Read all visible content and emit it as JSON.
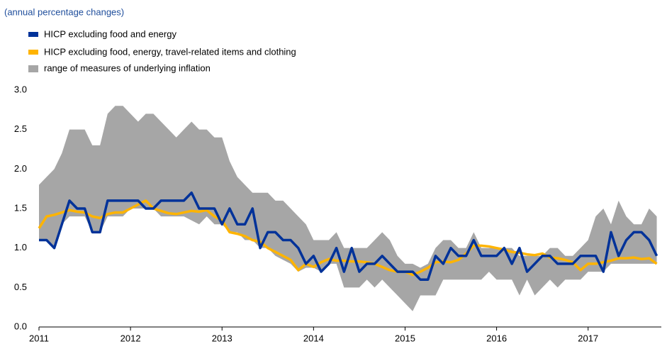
{
  "chart_data": {
    "type": "line",
    "subtitle": "(annual percentage changes)",
    "x": [
      2011,
      2011.083,
      2011.167,
      2011.25,
      2011.333,
      2011.417,
      2011.5,
      2011.583,
      2011.667,
      2011.75,
      2011.833,
      2011.917,
      2012,
      2012.083,
      2012.167,
      2012.25,
      2012.333,
      2012.417,
      2012.5,
      2012.583,
      2012.667,
      2012.75,
      2012.833,
      2012.917,
      2013,
      2013.083,
      2013.167,
      2013.25,
      2013.333,
      2013.417,
      2013.5,
      2013.583,
      2013.667,
      2013.75,
      2013.833,
      2013.917,
      2014,
      2014.083,
      2014.167,
      2014.25,
      2014.333,
      2014.417,
      2014.5,
      2014.583,
      2014.667,
      2014.75,
      2014.833,
      2014.917,
      2015,
      2015.083,
      2015.167,
      2015.25,
      2015.333,
      2015.417,
      2015.5,
      2015.583,
      2015.667,
      2015.75,
      2015.833,
      2015.917,
      2016,
      2016.083,
      2016.167,
      2016.25,
      2016.333,
      2016.417,
      2016.5,
      2016.583,
      2016.667,
      2016.75,
      2016.833,
      2016.917,
      2017,
      2017.083,
      2017.167,
      2017.25,
      2017.333,
      2017.417,
      2017.5,
      2017.583,
      2017.667,
      2017.75
    ],
    "range": {
      "name": "range of measures of underlying inflation",
      "color": "#a6a6a6",
      "upper": [
        1.8,
        1.9,
        2.0,
        2.2,
        2.5,
        2.5,
        2.5,
        2.3,
        2.3,
        2.7,
        2.8,
        2.8,
        2.7,
        2.6,
        2.7,
        2.7,
        2.6,
        2.5,
        2.4,
        2.5,
        2.6,
        2.5,
        2.5,
        2.4,
        2.4,
        2.1,
        1.9,
        1.8,
        1.7,
        1.7,
        1.7,
        1.6,
        1.6,
        1.5,
        1.4,
        1.3,
        1.1,
        1.1,
        1.1,
        1.2,
        1.0,
        1.0,
        1.0,
        1.0,
        1.1,
        1.2,
        1.1,
        0.9,
        0.8,
        0.8,
        0.75,
        0.8,
        1.0,
        1.1,
        1.1,
        1.0,
        1.0,
        1.2,
        1.0,
        1.0,
        1.0,
        1.0,
        1.0,
        0.9,
        0.9,
        0.9,
        0.9,
        1.0,
        1.0,
        0.9,
        0.9,
        1.0,
        1.1,
        1.4,
        1.5,
        1.3,
        1.6,
        1.4,
        1.3,
        1.3,
        1.5,
        1.4
      ],
      "lower": [
        1.1,
        1.1,
        1.0,
        1.3,
        1.4,
        1.4,
        1.4,
        1.2,
        1.2,
        1.4,
        1.4,
        1.4,
        1.5,
        1.5,
        1.5,
        1.5,
        1.4,
        1.4,
        1.4,
        1.4,
        1.35,
        1.3,
        1.4,
        1.3,
        1.3,
        1.2,
        1.2,
        1.1,
        1.1,
        1.0,
        1.0,
        0.9,
        0.85,
        0.8,
        0.7,
        0.75,
        0.75,
        0.7,
        0.8,
        0.8,
        0.5,
        0.5,
        0.5,
        0.6,
        0.5,
        0.6,
        0.5,
        0.4,
        0.3,
        0.2,
        0.4,
        0.4,
        0.4,
        0.6,
        0.6,
        0.6,
        0.6,
        0.6,
        0.6,
        0.7,
        0.6,
        0.6,
        0.6,
        0.4,
        0.6,
        0.4,
        0.5,
        0.6,
        0.5,
        0.6,
        0.6,
        0.6,
        0.7,
        0.7,
        0.7,
        0.8,
        0.8,
        0.8,
        0.8,
        0.8,
        0.8,
        0.8
      ]
    },
    "series": [
      {
        "name": "HICP excluding food and energy",
        "color": "#003299",
        "values": [
          1.1,
          1.1,
          1.0,
          1.3,
          1.6,
          1.5,
          1.5,
          1.2,
          1.2,
          1.6,
          1.6,
          1.6,
          1.6,
          1.6,
          1.5,
          1.5,
          1.6,
          1.6,
          1.6,
          1.6,
          1.7,
          1.5,
          1.5,
          1.5,
          1.3,
          1.5,
          1.3,
          1.3,
          1.5,
          1.0,
          1.2,
          1.2,
          1.1,
          1.1,
          1.0,
          0.8,
          0.9,
          0.7,
          0.8,
          1.0,
          0.7,
          1.0,
          0.7,
          0.8,
          0.8,
          0.9,
          0.8,
          0.7,
          0.7,
          0.7,
          0.6,
          0.6,
          0.9,
          0.8,
          1.0,
          0.9,
          0.9,
          1.1,
          0.9,
          0.9,
          0.9,
          1.0,
          0.8,
          1.0,
          0.7,
          0.8,
          0.9,
          0.9,
          0.8,
          0.8,
          0.8,
          0.9,
          0.9,
          0.9,
          0.7,
          1.2,
          0.9,
          1.1,
          1.2,
          1.2,
          1.1,
          0.9
        ]
      },
      {
        "name": "HICP excluding food, energy, travel-related items and clothing",
        "color": "#ffb400",
        "values": [
          1.25,
          1.4,
          1.42,
          1.45,
          1.48,
          1.46,
          1.45,
          1.4,
          1.38,
          1.43,
          1.45,
          1.45,
          1.5,
          1.55,
          1.6,
          1.5,
          1.47,
          1.44,
          1.43,
          1.45,
          1.47,
          1.46,
          1.48,
          1.4,
          1.35,
          1.2,
          1.18,
          1.15,
          1.1,
          1.08,
          1.0,
          0.95,
          0.9,
          0.85,
          0.72,
          0.8,
          0.76,
          0.82,
          0.86,
          0.84,
          0.84,
          0.83,
          0.83,
          0.82,
          0.8,
          0.76,
          0.72,
          0.7,
          0.7,
          0.66,
          0.7,
          0.75,
          0.82,
          0.83,
          0.82,
          0.85,
          0.93,
          1.03,
          1.03,
          1.02,
          1.0,
          0.98,
          0.95,
          0.94,
          0.92,
          0.91,
          0.93,
          0.88,
          0.87,
          0.85,
          0.82,
          0.72,
          0.8,
          0.8,
          0.82,
          0.84,
          0.87,
          0.87,
          0.88,
          0.86,
          0.87,
          0.8
        ]
      }
    ],
    "xlim": [
      2011,
      2017.8
    ],
    "xticks": [
      2011,
      2012,
      2013,
      2014,
      2015,
      2016,
      2017
    ],
    "ylim": [
      0,
      3
    ],
    "yticks": [
      {
        "value": 0,
        "label": "0.0"
      },
      0.5,
      {
        "value": 1,
        "label": "1.0"
      },
      1.5,
      {
        "value": 2,
        "label": "2.0"
      },
      2.5,
      {
        "value": 3,
        "label": "3.0"
      }
    ],
    "grid": false
  }
}
